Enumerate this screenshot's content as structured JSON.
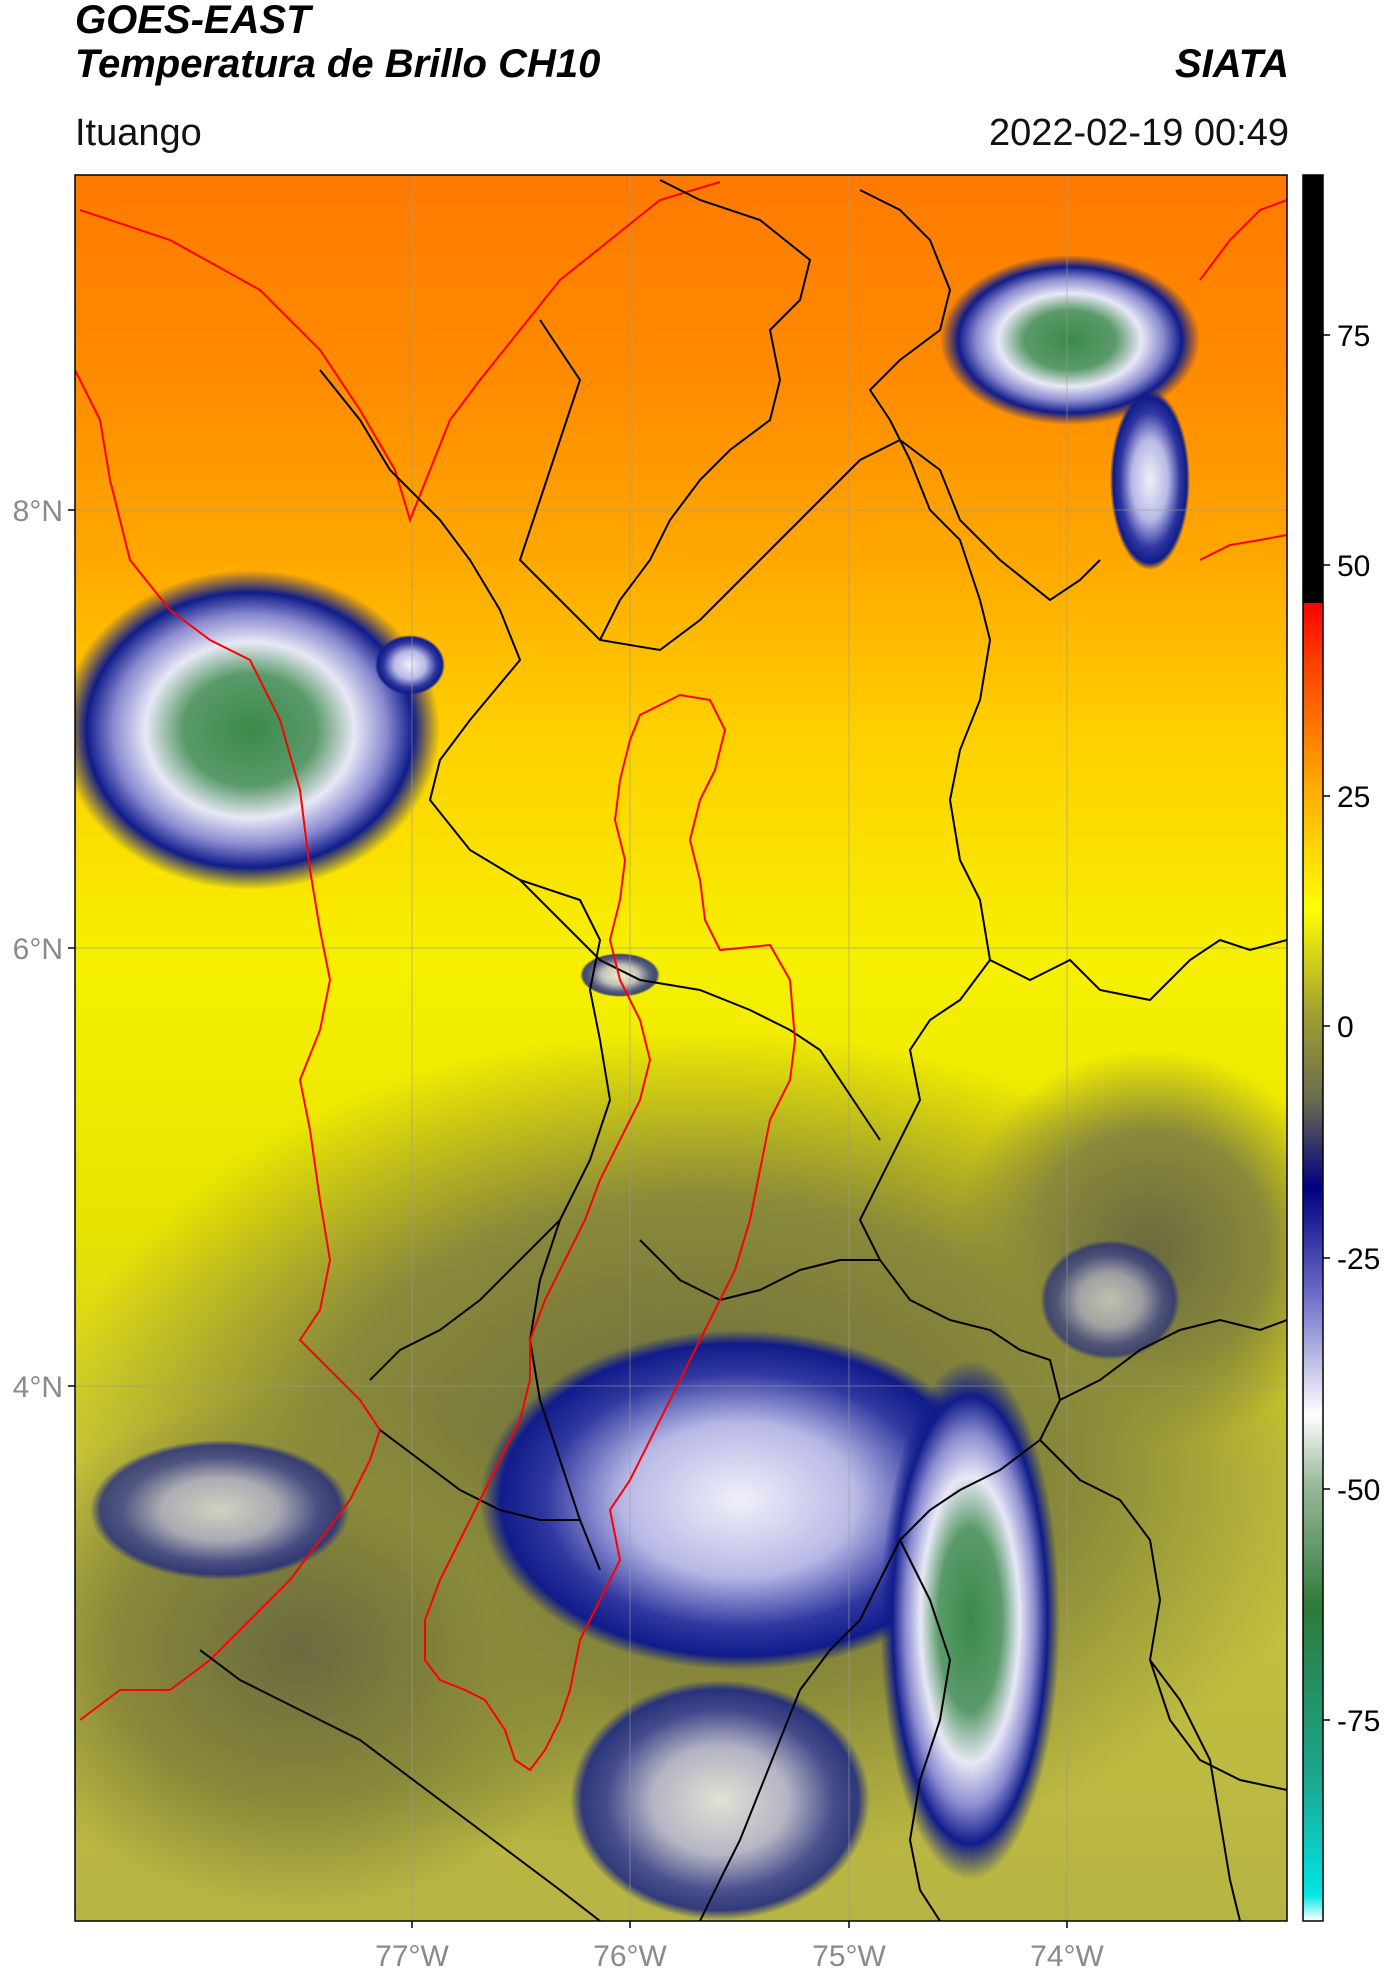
{
  "header": {
    "title_line1": "GOES-EAST",
    "title_line2": "Temperatura de Brillo CH10",
    "organization": "SIATA",
    "location": "Ituango",
    "datetime": "2022-02-19 00:49"
  },
  "map": {
    "lat_labels": [
      "8°N",
      "6°N",
      "4°N"
    ],
    "lon_labels": [
      "77°W",
      "76°W",
      "75°W",
      "74°W"
    ],
    "colors": {
      "warm_orange": "#ff8a00",
      "yellow": "#f6f000",
      "olive": "#8a8a3a",
      "navy": "#101c8a",
      "lavender": "#c8c8ec",
      "green": "#3a8a4a",
      "boundary_black": "#000000",
      "basin_red": "#ff0000"
    }
  },
  "colorbar": {
    "ticks": [
      "75",
      "50",
      "25",
      "0",
      "-25",
      "-50",
      "-75"
    ],
    "colors": {
      "black": "#000000",
      "red": "#ff0000",
      "orange": "#ff8c00",
      "yellow": "#ffff00",
      "olive": "#7f7f2a",
      "navy": "#000080",
      "white": "#ffffff",
      "green": "#2e8b57",
      "cyan": "#00e5e5"
    }
  }
}
